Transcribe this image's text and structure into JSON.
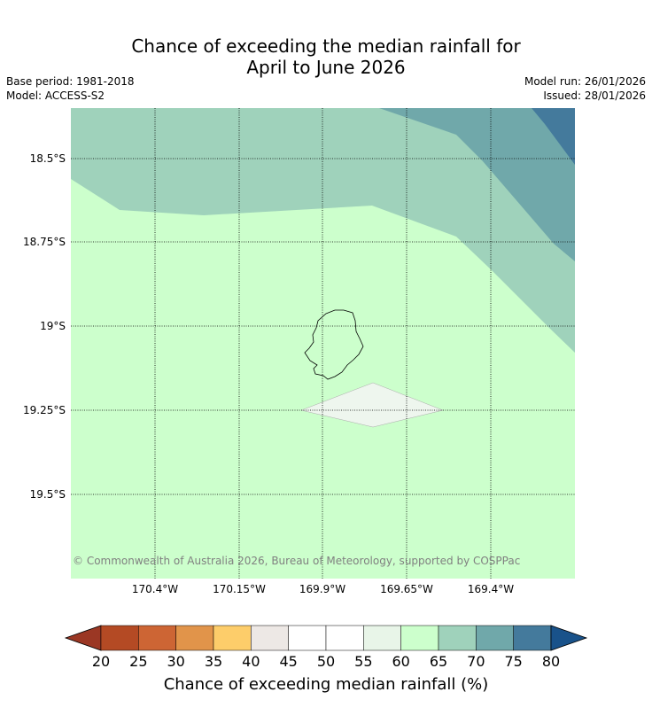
{
  "title": {
    "line1": "Chance of exceeding the median rainfall for",
    "line2": "April to June 2026"
  },
  "meta": {
    "base_period": "Base period: 1981-2018",
    "model": "Model: ACCESS-S2",
    "model_run": "Model run: 26/01/2026",
    "issued": "Issued: 28/01/2026"
  },
  "map": {
    "lat_labels": [
      "18.5°S",
      "18.75°S",
      "19°S",
      "19.25°S",
      "19.5°S"
    ],
    "lon_labels": [
      "170.4°W",
      "170.15°W",
      "169.9°W",
      "169.65°W",
      "169.4°W"
    ],
    "copyright": "© Commonwealth of Australia 2026, Bureau of Meteorology, supported by COSPPac",
    "region_colors": {
      "class_60_65": "#ccffcc",
      "class_65_70": "#9fd2bb",
      "class_70_75": "#70a8aa",
      "class_75_80": "#447a9c",
      "class_45_55": "#eef6ee"
    }
  },
  "colorbar": {
    "ticks": [
      "20",
      "25",
      "30",
      "35",
      "40",
      "45",
      "50",
      "55",
      "60",
      "65",
      "70",
      "75",
      "80"
    ],
    "colors": [
      "#b44a24",
      "#cd6534",
      "#e1944a",
      "#fdcd6a",
      "#ede8e5",
      "#ffffff",
      "#ffffff",
      "#e8f5e8",
      "#ccffcc",
      "#9fd2bb",
      "#70a8aa",
      "#447a9c"
    ],
    "under_color": "#9b3724",
    "over_color": "#19528a",
    "label": "Chance of exceeding median rainfall (%)"
  }
}
